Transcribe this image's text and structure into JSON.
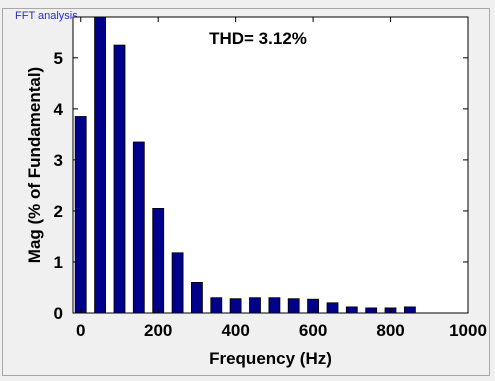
{
  "panel": {
    "title": "FFT analysis"
  },
  "chart_data": {
    "type": "bar",
    "title": "THD= 3.12%",
    "xlabel": "Frequency (Hz)",
    "ylabel": "Mag (% of Fundamental)",
    "xlim": [
      -20,
      1000
    ],
    "ylim": [
      0,
      5.8
    ],
    "xticks": [
      0,
      200,
      400,
      600,
      800,
      1000
    ],
    "yticks": [
      0,
      1,
      2,
      3,
      4,
      5
    ],
    "x": [
      0,
      50,
      100,
      150,
      200,
      250,
      300,
      350,
      400,
      450,
      500,
      550,
      600,
      650,
      700,
      750,
      800,
      850,
      900,
      950
    ],
    "values": [
      3.85,
      5.85,
      5.25,
      3.35,
      2.05,
      1.18,
      0.6,
      0.3,
      0.28,
      0.3,
      0.3,
      0.28,
      0.27,
      0.2,
      0.12,
      0.1,
      0.1,
      0.12,
      0.0,
      0.0
    ],
    "bar_color": "#00008b",
    "bar_edge_color": "#000000",
    "grid": false
  }
}
